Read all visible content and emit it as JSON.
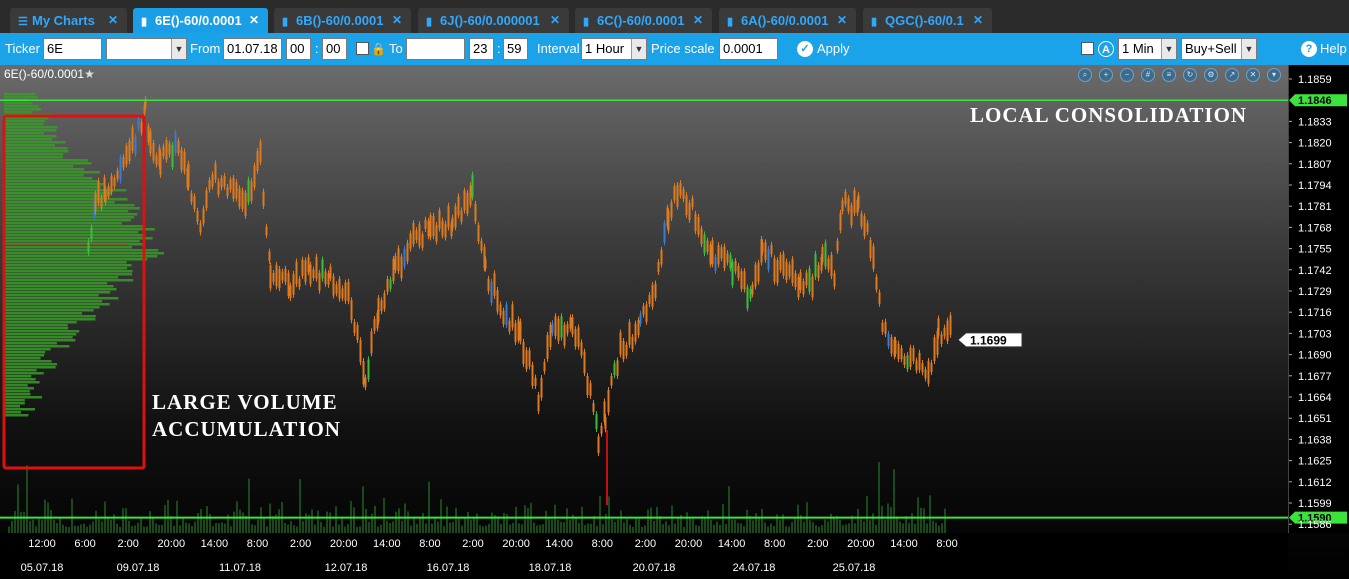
{
  "tabs": [
    {
      "label": "My Charts",
      "icon": "menu-icon"
    },
    {
      "label": "6E()-60/0.0001",
      "icon": "bar-chart-icon"
    },
    {
      "label": "6B()-60/0.0001",
      "icon": "bar-chart-icon"
    },
    {
      "label": "6J()-60/0.000001",
      "icon": "bar-chart-icon"
    },
    {
      "label": "6C()-60/0.0001",
      "icon": "bar-chart-icon"
    },
    {
      "label": "6A()-60/0.0001",
      "icon": "bar-chart-icon"
    },
    {
      "label": "QGC()-60/0.1",
      "icon": "bar-chart-icon"
    }
  ],
  "toolbar": {
    "ticker_label": "Ticker",
    "ticker_value": "6E",
    "from_label": "From",
    "from_date": "01.07.18",
    "from_hour": "00",
    "from_min": "00",
    "to_label": "To",
    "to_date": "",
    "to_hour": "23",
    "to_min": "59",
    "interval_label": "Interval",
    "interval_value": "1 Hour",
    "price_scale_label": "Price scale",
    "price_scale_value": "0.0001",
    "apply_label": "Apply",
    "period_value": "1 Min",
    "side_value": "Buy+Sell",
    "help_label": "Help",
    "colon": ":"
  },
  "chart": {
    "title": "6E()-60/0.0001",
    "star": "★",
    "annotation_top": "LOCAL CONSOLIDATION",
    "annotation_left_1": "LARGE VOLUME",
    "annotation_left_2": "ACCUMULATION",
    "price_ticks": [
      "1.1859",
      "1.1846",
      "1.1833",
      "1.1820",
      "1.1807",
      "1.1794",
      "1.1781",
      "1.1768",
      "1.1755",
      "1.1742",
      "1.1729",
      "1.1716",
      "1.1703",
      "1.1690",
      "1.1677",
      "1.1664",
      "1.1651",
      "1.1638",
      "1.1625",
      "1.1612",
      "1.1599",
      "1.1590",
      "1.1586"
    ],
    "level_high": "1.1846",
    "level_low": "1.1590",
    "last_price": "1.1699",
    "time_ticks": [
      "12:00",
      "6:00",
      "2:00",
      "20:00",
      "14:00",
      "8:00",
      "2:00",
      "20:00",
      "14:00",
      "8:00",
      "2:00",
      "20:00",
      "14:00",
      "8:00",
      "2:00",
      "20:00",
      "14:00",
      "8:00",
      "2:00",
      "20:00",
      "14:00",
      "8:00"
    ],
    "date_ticks": [
      "05.07.18",
      "09.07.18",
      "11.07.18",
      "12.07.18",
      "16.07.18",
      "18.07.18",
      "20.07.18",
      "24.07.18",
      "25.07.18"
    ],
    "colors": {
      "accent": "#1aa3e8",
      "level_line": "#3de33d",
      "candle_up": "#e07a1f",
      "profile": "#3a9a2a",
      "box": "#e01010"
    }
  }
}
